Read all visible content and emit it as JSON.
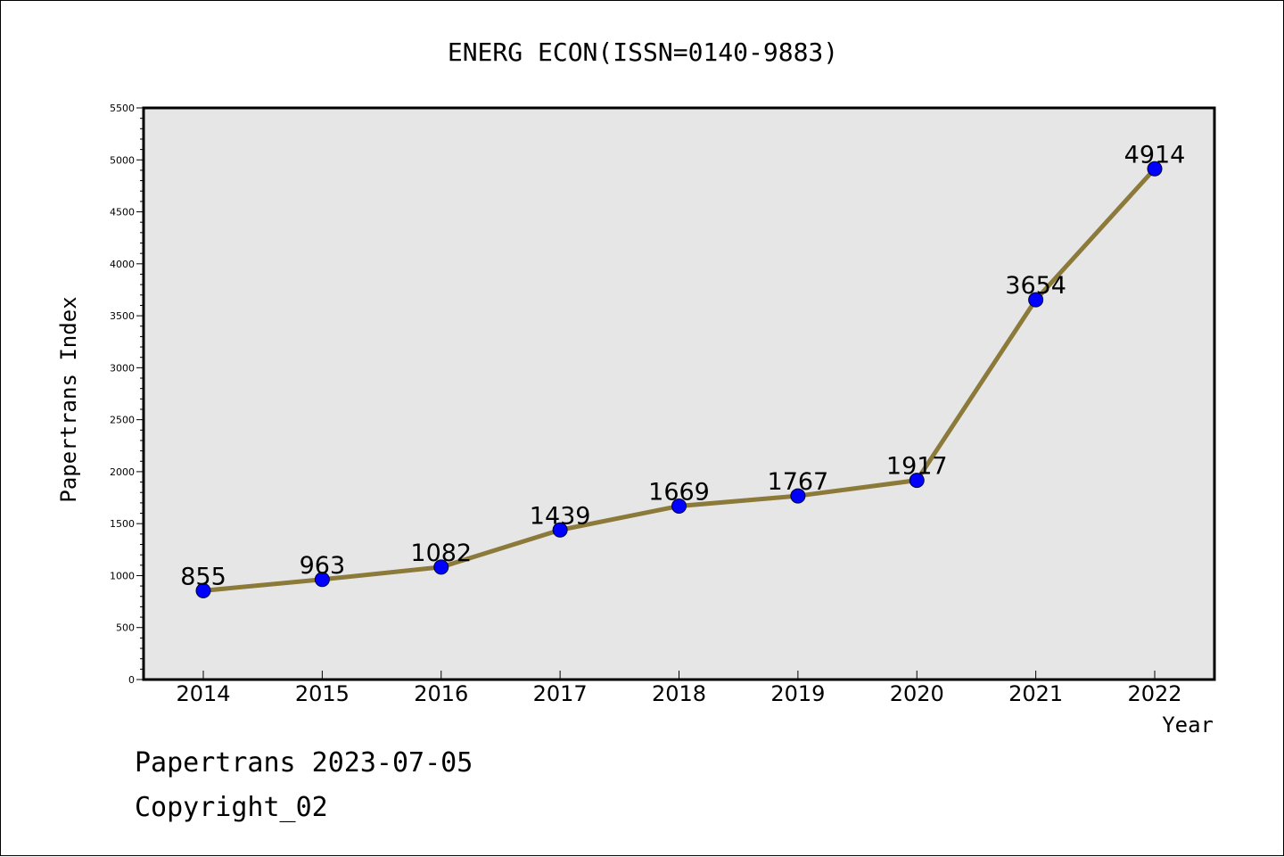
{
  "chart_data": {
    "type": "line",
    "title": "ENERG ECON(ISSN=0140-9883)",
    "xlabel": "Year",
    "ylabel": "Papertrans Index",
    "categories": [
      "2014",
      "2015",
      "2016",
      "2017",
      "2018",
      "2019",
      "2020",
      "2021",
      "2022"
    ],
    "values": [
      855,
      963,
      1082,
      1439,
      1669,
      1767,
      1917,
      3654,
      4914
    ],
    "data_labels": [
      "855",
      "963",
      "1082",
      "1439",
      "1669",
      "1767",
      "1917",
      "3654",
      "4914"
    ],
    "ylim": [
      0,
      5500
    ],
    "y_ticks": [
      0,
      500,
      1000,
      1500,
      2000,
      2500,
      3000,
      3500,
      4000,
      4500,
      5000,
      5500
    ],
    "y_tick_labels": [
      "0",
      "500",
      "1000",
      "1500",
      "2000",
      "2500",
      "3000",
      "3500",
      "4000",
      "4500",
      "5000",
      "5500"
    ],
    "grid": false,
    "legend": "none",
    "colors": {
      "line": "#8b7a3a",
      "marker": "#0000ff",
      "plot_background": "#e6e6e6",
      "page_background": "#ffffff",
      "text": "#000000"
    }
  },
  "footer": {
    "line1": "Papertrans 2023-07-05",
    "line2": "Copyright_02"
  }
}
